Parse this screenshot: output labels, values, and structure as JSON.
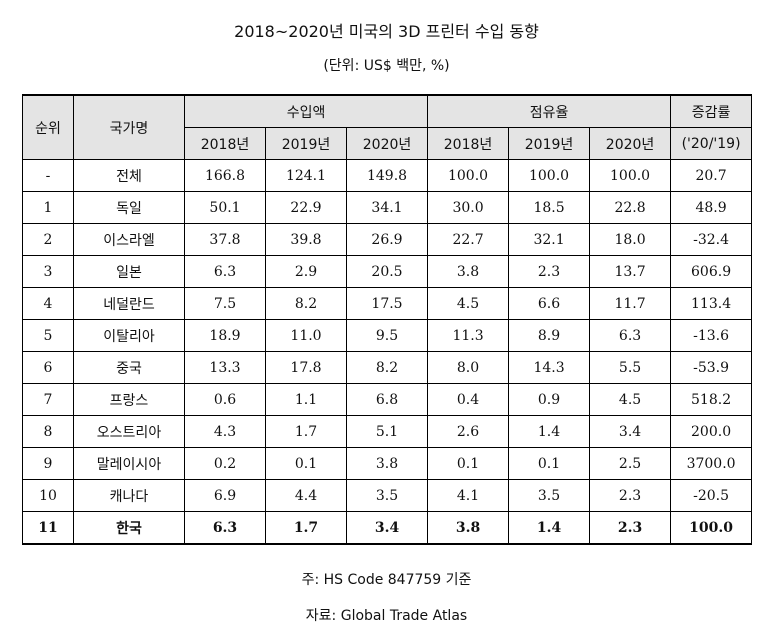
{
  "title": "2018~2020년 미국의 3D 프린터 수입 동향",
  "unit": "(단위: US$ 백만, %)",
  "headers": {
    "rank": "순위",
    "country": "국가명",
    "import": "수입액",
    "share": "점유율",
    "change": "증감률",
    "change_period": "('20/'19)",
    "years": [
      "2018년",
      "2019년",
      "2020년"
    ]
  },
  "rows": [
    {
      "rank": "-",
      "country": "전체",
      "imp2018": "166.8",
      "imp2019": "124.1",
      "imp2020": "149.8",
      "sh2018": "100.0",
      "sh2019": "100.0",
      "sh2020": "100.0",
      "change": "20.7"
    },
    {
      "rank": "1",
      "country": "독일",
      "imp2018": "50.1",
      "imp2019": "22.9",
      "imp2020": "34.1",
      "sh2018": "30.0",
      "sh2019": "18.5",
      "sh2020": "22.8",
      "change": "48.9"
    },
    {
      "rank": "2",
      "country": "이스라엘",
      "imp2018": "37.8",
      "imp2019": "39.8",
      "imp2020": "26.9",
      "sh2018": "22.7",
      "sh2019": "32.1",
      "sh2020": "18.0",
      "change": "-32.4"
    },
    {
      "rank": "3",
      "country": "일본",
      "imp2018": "6.3",
      "imp2019": "2.9",
      "imp2020": "20.5",
      "sh2018": "3.8",
      "sh2019": "2.3",
      "sh2020": "13.7",
      "change": "606.9"
    },
    {
      "rank": "4",
      "country": "네덜란드",
      "imp2018": "7.5",
      "imp2019": "8.2",
      "imp2020": "17.5",
      "sh2018": "4.5",
      "sh2019": "6.6",
      "sh2020": "11.7",
      "change": "113.4"
    },
    {
      "rank": "5",
      "country": "이탈리아",
      "imp2018": "18.9",
      "imp2019": "11.0",
      "imp2020": "9.5",
      "sh2018": "11.3",
      "sh2019": "8.9",
      "sh2020": "6.3",
      "change": "-13.6"
    },
    {
      "rank": "6",
      "country": "중국",
      "imp2018": "13.3",
      "imp2019": "17.8",
      "imp2020": "8.2",
      "sh2018": "8.0",
      "sh2019": "14.3",
      "sh2020": "5.5",
      "change": "-53.9"
    },
    {
      "rank": "7",
      "country": "프랑스",
      "imp2018": "0.6",
      "imp2019": "1.1",
      "imp2020": "6.8",
      "sh2018": "0.4",
      "sh2019": "0.9",
      "sh2020": "4.5",
      "change": "518.2"
    },
    {
      "rank": "8",
      "country": "오스트리아",
      "imp2018": "4.3",
      "imp2019": "1.7",
      "imp2020": "5.1",
      "sh2018": "2.6",
      "sh2019": "1.4",
      "sh2020": "3.4",
      "change": "200.0"
    },
    {
      "rank": "9",
      "country": "말레이시아",
      "imp2018": "0.2",
      "imp2019": "0.1",
      "imp2020": "3.8",
      "sh2018": "0.1",
      "sh2019": "0.1",
      "sh2020": "2.5",
      "change": "3700.0"
    },
    {
      "rank": "10",
      "country": "캐나다",
      "imp2018": "6.9",
      "imp2019": "4.4",
      "imp2020": "3.5",
      "sh2018": "4.1",
      "sh2019": "3.5",
      "sh2020": "2.3",
      "change": "-20.5"
    },
    {
      "rank": "11",
      "country": "한국",
      "imp2018": "6.3",
      "imp2019": "1.7",
      "imp2020": "3.4",
      "sh2018": "3.8",
      "sh2019": "1.4",
      "sh2020": "2.3",
      "change": "100.0",
      "highlight": true
    }
  ],
  "note": "주: HS Code 847759 기준",
  "source": "자료: Global Trade Atlas"
}
